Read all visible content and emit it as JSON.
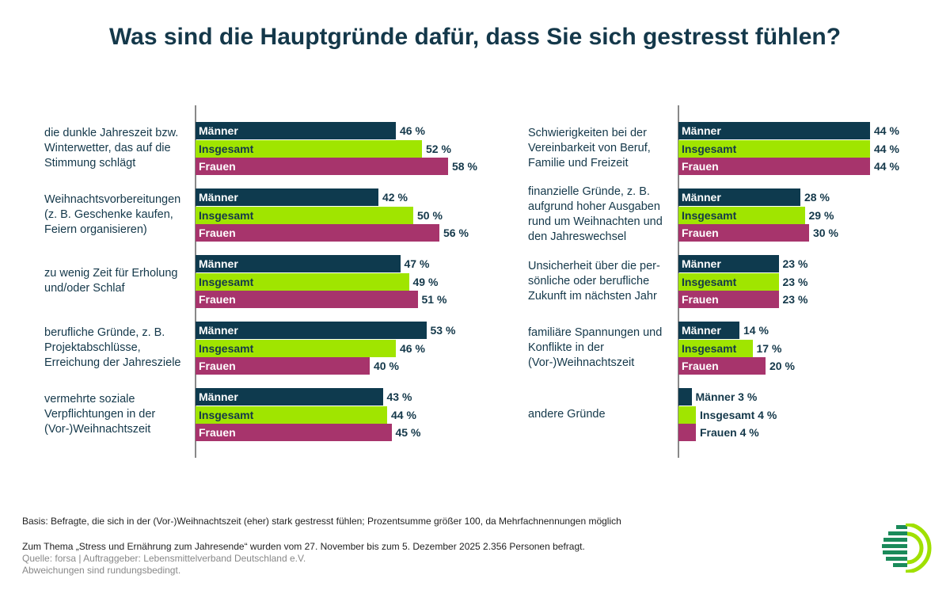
{
  "title": "Was sind die Hauptgründe dafür, dass Sie sich gestresst fühlen?",
  "colors": {
    "Männer": "#0e3a4e",
    "Insgesamt": "#a0e500",
    "Frauen": "#a7346c"
  },
  "chart_data": [
    {
      "type": "bar",
      "orientation": "horizontal",
      "unit": "%",
      "series_names": [
        "Männer",
        "Insgesamt",
        "Frauen"
      ],
      "categories": [
        "die dunkle Jahreszeit bzw. Winterwetter, das auf die Stimmung schlägt",
        "Weihnachtsvorbereitungen (z. B. Geschenke kaufen, Feiern organisieren)",
        "zu wenig Zeit für Erholung und/oder Schlaf",
        "berufliche Gründe, z. B. Projektabschlüsse, Erreichung der Jahresziele",
        "vermehrte soziale Verpflichtungen in der (Vor-)Weihnachtszeit"
      ],
      "series": [
        {
          "name": "Männer",
          "values": [
            46,
            42,
            47,
            53,
            43
          ]
        },
        {
          "name": "Insgesamt",
          "values": [
            52,
            50,
            49,
            46,
            44
          ]
        },
        {
          "name": "Frauen",
          "values": [
            58,
            56,
            51,
            40,
            45
          ]
        }
      ]
    },
    {
      "type": "bar",
      "orientation": "horizontal",
      "unit": "%",
      "series_names": [
        "Männer",
        "Insgesamt",
        "Frauen"
      ],
      "categories": [
        "Schwierigkeiten bei der Vereinbarkeit von Beruf, Familie und Freizeit",
        "finanzielle Gründe, z. B. aufgrund hoher Ausgaben rund um Weihnachten und den Jahreswechsel",
        "Unsicherheit über die per-sönliche oder berufliche Zukunft im nächsten Jahr",
        "familiäre Spannungen und Konflikte in der (Vor-)Weihnachtszeit",
        "andere Gründe"
      ],
      "series": [
        {
          "name": "Männer",
          "values": [
            44,
            28,
            23,
            14,
            3
          ]
        },
        {
          "name": "Insgesamt",
          "values": [
            44,
            29,
            23,
            17,
            4
          ]
        },
        {
          "name": "Frauen",
          "values": [
            44,
            30,
            23,
            20,
            4
          ]
        }
      ]
    }
  ],
  "footer": {
    "basis": "Basis: Befragte, die sich in der (Vor-)Weihnachtszeit (eher) stark gestresst fühlen; Prozentsumme größer 100, da Mehrfachnennungen möglich",
    "thema": "Zum Thema „Stress und Ernährung zum Jahresende“ wurden vom 27. November bis zum 5. Dezember 2025 2.356 Personen befragt.",
    "quelle": "Quelle: forsa | Auftraggeber: Lebensmittelverband Deutschland e.V.",
    "abweichung": "Abweichungen sind rundungsbedingt."
  },
  "logo": "Lebensmittelverband Deutschland logo"
}
